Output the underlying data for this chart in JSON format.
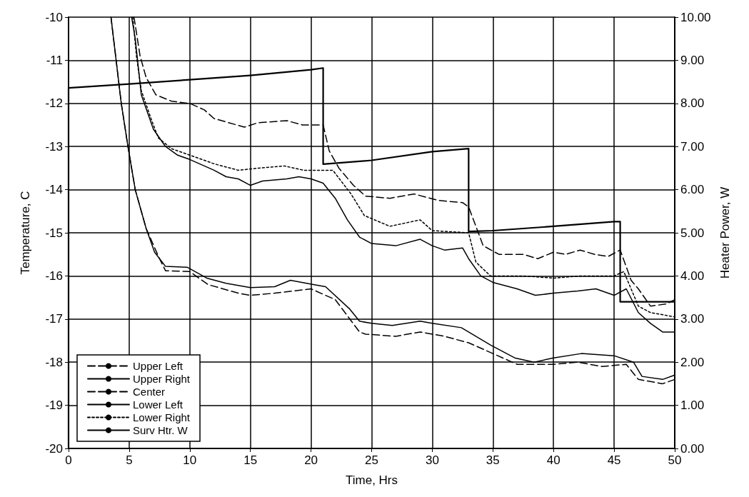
{
  "chart_data": {
    "type": "line",
    "xlabel": "Time, Hrs",
    "ylabel": "Temperature, C",
    "y2label": "Heater Power, W",
    "xlim": [
      0,
      50
    ],
    "xticks": [
      0,
      5,
      10,
      15,
      20,
      25,
      30,
      35,
      40,
      45,
      50
    ],
    "ylim": [
      -20,
      -10
    ],
    "yticks": [
      -20,
      -19,
      -18,
      -17,
      -16,
      -15,
      -14,
      -13,
      -12,
      -11,
      -10
    ],
    "y2lim": [
      0,
      10
    ],
    "y2ticks": [
      {
        "value": 0,
        "label": "0.00"
      },
      {
        "value": 1,
        "label": "1.00"
      },
      {
        "value": 2,
        "label": "2.00"
      },
      {
        "value": 3,
        "label": "3.00"
      },
      {
        "value": 4,
        "label": "4.00"
      },
      {
        "value": 5,
        "label": "5.00"
      },
      {
        "value": 6,
        "label": "6.00"
      },
      {
        "value": 7,
        "label": "7.00"
      },
      {
        "value": 8,
        "label": "8.00"
      },
      {
        "value": 9,
        "label": "9.00"
      },
      {
        "value": 10,
        "label": "10.00"
      }
    ],
    "grid": true,
    "legend": "bottom left",
    "marker": "none",
    "series": [
      {
        "name": "Upper Left",
        "color": "#000000",
        "line_style": "dashed",
        "x": [
          3.5,
          4.35,
          4.9,
          5.5,
          6.4,
          7.5,
          8,
          10,
          11.5,
          14,
          15,
          17,
          20,
          22,
          24,
          24.5,
          27,
          29,
          31,
          33,
          35,
          37,
          40,
          42,
          44,
          46,
          47,
          49,
          50
        ],
        "values": [
          -10,
          -12,
          -13,
          -14,
          -14.9,
          -15.6,
          -15.88,
          -15.9,
          -16.2,
          -16.4,
          -16.45,
          -16.4,
          -16.3,
          -16.55,
          -17.3,
          -17.35,
          -17.4,
          -17.3,
          -17.4,
          -17.55,
          -17.8,
          -18.05,
          -18.05,
          -18,
          -18.1,
          -18.05,
          -18.4,
          -18.5,
          -18.4
        ]
      },
      {
        "name": "Upper Right",
        "color": "#000000",
        "line_style": "solid",
        "x": [
          3.5,
          4.35,
          4.9,
          5.5,
          6.4,
          7.1,
          8,
          9.8,
          11.4,
          13,
          15,
          17,
          18.3,
          20.2,
          21.2,
          23.2,
          24,
          25,
          26.7,
          29,
          30,
          32.4,
          34.8,
          36.8,
          38.4,
          40,
          42.3,
          45,
          46.6,
          47.3,
          49,
          50
        ],
        "values": [
          -10,
          -12,
          -13,
          -14,
          -14.9,
          -15.45,
          -15.78,
          -15.8,
          -16.05,
          -16.17,
          -16.27,
          -16.25,
          -16.1,
          -16.2,
          -16.25,
          -16.77,
          -17.05,
          -17.1,
          -17.15,
          -17.05,
          -17.1,
          -17.2,
          -17.6,
          -17.9,
          -18,
          -17.9,
          -17.8,
          -17.85,
          -18,
          -18.33,
          -18.4,
          -18.3
        ]
      },
      {
        "name": "Center",
        "color": "#000000",
        "line_style": "dashed",
        "x": [
          5.4,
          5.9,
          6.4,
          7.2,
          8.5,
          10,
          11.2,
          12,
          14.5,
          15.6,
          18,
          19.3,
          21,
          21.5,
          22.3,
          23.5,
          24.5,
          26.5,
          28.5,
          30.5,
          32.5,
          33,
          34.2,
          35.5,
          37.5,
          38.7,
          40,
          41,
          42.2,
          43.4,
          44.5,
          45.5,
          46.4,
          47,
          48,
          49.3,
          50
        ],
        "values": [
          -10,
          -10.9,
          -11.4,
          -11.8,
          -11.95,
          -12,
          -12.15,
          -12.35,
          -12.55,
          -12.45,
          -12.4,
          -12.5,
          -12.5,
          -13.1,
          -13.5,
          -13.9,
          -14.15,
          -14.2,
          -14.1,
          -14.25,
          -14.3,
          -14.4,
          -15.3,
          -15.5,
          -15.5,
          -15.6,
          -15.45,
          -15.5,
          -15.4,
          -15.5,
          -15.55,
          -15.4,
          -16.1,
          -16.3,
          -16.7,
          -16.65,
          -16.55
        ]
      },
      {
        "name": "Lower Left",
        "color": "#000000",
        "line_style": "solid",
        "x": [
          5.2,
          5.5,
          6,
          7,
          8,
          9,
          10,
          12,
          13,
          14,
          15,
          16,
          18,
          19,
          20,
          21,
          22,
          23,
          24,
          25,
          27,
          29,
          30,
          31,
          32.5,
          33,
          34,
          35,
          37,
          38.5,
          40,
          42,
          43.5,
          45,
          46,
          47,
          48,
          49,
          50
        ],
        "values": [
          -10,
          -10.5,
          -11.8,
          -12.6,
          -13,
          -13.2,
          -13.3,
          -13.55,
          -13.7,
          -13.75,
          -13.9,
          -13.8,
          -13.75,
          -13.7,
          -13.75,
          -13.85,
          -14.2,
          -14.7,
          -15.1,
          -15.25,
          -15.3,
          -15.15,
          -15.3,
          -15.4,
          -15.35,
          -15.6,
          -16,
          -16.15,
          -16.3,
          -16.45,
          -16.4,
          -16.35,
          -16.3,
          -16.45,
          -16.3,
          -16.85,
          -17.1,
          -17.3,
          -17.3
        ]
      },
      {
        "name": "Lower Right",
        "color": "#000000",
        "line_style": "dotted",
        "x": [
          5.3,
          5.6,
          6,
          6.8,
          7.4,
          8.5,
          10,
          12,
          14,
          15.7,
          17.8,
          19.4,
          20.5,
          21.8,
          23.3,
          24.4,
          26.5,
          29,
          30,
          33,
          33.6,
          34.8,
          37.5,
          40,
          42.3,
          45,
          45.8,
          47,
          48,
          50
        ],
        "values": [
          -10,
          -10.9,
          -11.7,
          -12.35,
          -12.8,
          -13.05,
          -13.2,
          -13.4,
          -13.55,
          -13.5,
          -13.45,
          -13.55,
          -13.55,
          -13.55,
          -14.1,
          -14.6,
          -14.85,
          -14.7,
          -14.95,
          -15,
          -15.68,
          -16,
          -16,
          -16.05,
          -16,
          -16,
          -15.9,
          -16.7,
          -16.85,
          -16.95
        ]
      },
      {
        "name": "Surv Htr. W",
        "color": "#000000",
        "line_style": "solid",
        "axis": "y2",
        "x": [
          0,
          0,
          5,
          10,
          15,
          20,
          21,
          21,
          25,
          30,
          33,
          33,
          35,
          40,
          45,
          45.5,
          45.5,
          50
        ],
        "values": [
          0,
          8.36,
          8.45,
          8.55,
          8.65,
          8.78,
          8.82,
          6.59,
          6.68,
          6.88,
          6.95,
          5.03,
          5.05,
          5.15,
          5.26,
          5.26,
          3.4,
          3.4
        ]
      }
    ]
  }
}
